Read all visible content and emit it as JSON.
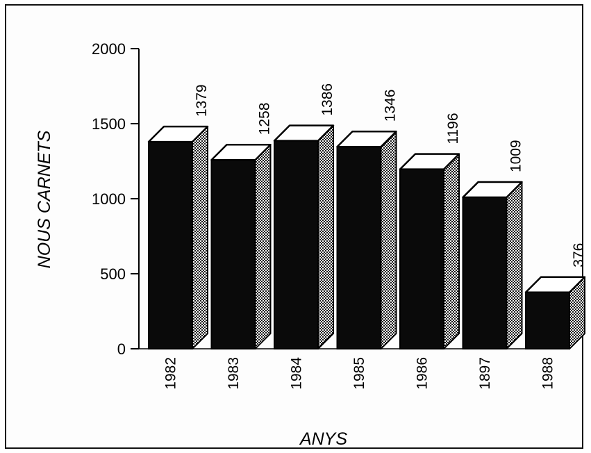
{
  "chart_data": {
    "type": "bar",
    "style": "3d",
    "categories": [
      "1982",
      "1983",
      "1984",
      "1985",
      "1986",
      "1897",
      "1988"
    ],
    "values": [
      1379,
      1258,
      1386,
      1346,
      1196,
      1009,
      376
    ],
    "data_labels": [
      "1379",
      "1258",
      "1386",
      "1346",
      "1196",
      "1009",
      "376"
    ],
    "xlabel": "ANYS",
    "ylabel": "NOUS CARNETS",
    "ylim": [
      0,
      2000
    ],
    "yticks": [
      0,
      500,
      1000,
      1500,
      2000
    ],
    "ytick_labels": [
      "0",
      "500",
      "1000",
      "1500",
      "2000"
    ],
    "grid": false,
    "colors": {
      "front": "#0a0a0a",
      "top": "#ffffff",
      "side": "#bcbcbc",
      "frame": "#111111"
    }
  }
}
